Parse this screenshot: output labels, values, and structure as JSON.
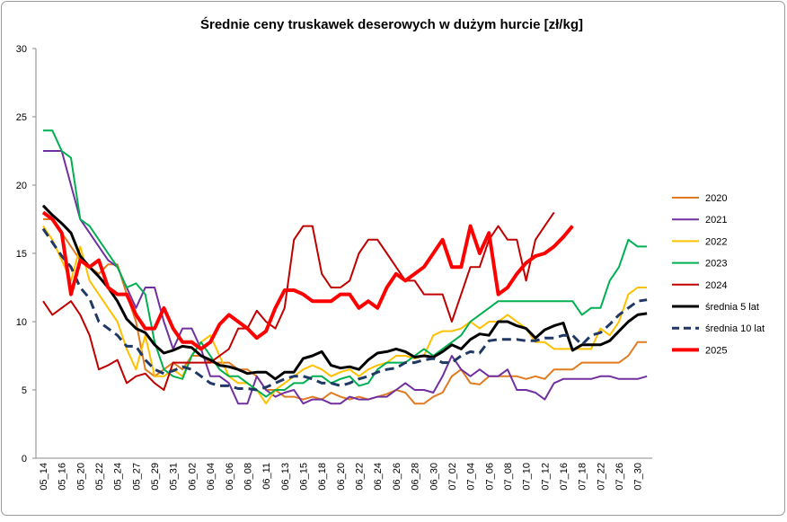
{
  "chart_data": {
    "type": "line",
    "title": "Średnie ceny truskawek deserowych w dużym hurcie [zł/kg]",
    "categories": [
      "05_14",
      null,
      "05_16",
      null,
      "05_20",
      null,
      "05_22",
      null,
      "05_24",
      null,
      "05_27",
      null,
      "05_29",
      null,
      "05_31",
      null,
      "06_02",
      null,
      "06_04",
      null,
      "06_06",
      null,
      "06_08",
      null,
      "06_11",
      null,
      "06_13",
      null,
      "06_15",
      null,
      "06_18",
      null,
      "06_20",
      null,
      "06_22",
      null,
      "06_24",
      null,
      "06_26",
      null,
      "06_28",
      null,
      "06_30",
      null,
      "07_02",
      null,
      "07_04",
      null,
      "07_06",
      null,
      "07_08",
      null,
      "07_10",
      null,
      "07_12",
      null,
      "07_16",
      null,
      "07_18",
      null,
      "07_22",
      null,
      "07_26",
      null,
      "07_30",
      null
    ],
    "ylim": [
      0,
      30
    ],
    "yticks": [
      0,
      5,
      10,
      15,
      20,
      25,
      30
    ],
    "grid": false,
    "legend": "right",
    "series": [
      {
        "name": "2020",
        "color": "#e07b20",
        "line_width": 2,
        "dash": false,
        "values": [
          17.5,
          17.5,
          16.5,
          15.5,
          14.5,
          14,
          13.5,
          14.2,
          14.2,
          12,
          10,
          6.5,
          6,
          6.5,
          7,
          6.5,
          7.5,
          7.5,
          7,
          7,
          7,
          6.5,
          6.5,
          6,
          5,
          5,
          4.5,
          4.5,
          4.3,
          4.5,
          4.3,
          4.8,
          4.5,
          4.3,
          4.5,
          4.3,
          4.5,
          4.7,
          5,
          4.8,
          4,
          4,
          4.5,
          4.8,
          6,
          6.5,
          5.5,
          5.4,
          6,
          6,
          6,
          6,
          5.8,
          6,
          5.8,
          6.5,
          6.5,
          6.5,
          7,
          7,
          7,
          7,
          7,
          7.5,
          8.5,
          8.5
        ]
      },
      {
        "name": "2021",
        "color": "#7030a0",
        "line_width": 2,
        "dash": false,
        "values": [
          22.5,
          22.5,
          22.5,
          20,
          17.5,
          16.5,
          15.5,
          14.5,
          14,
          12.5,
          11,
          12.5,
          12.5,
          10,
          8,
          9.5,
          9.5,
          8,
          6,
          6,
          5.5,
          4,
          4,
          6,
          5,
          4.5,
          4.8,
          5,
          4,
          4.3,
          4.3,
          4,
          4,
          4.5,
          4.3,
          4.3,
          4.5,
          4.5,
          5,
          5.5,
          5,
          5,
          4.8,
          6,
          7.5,
          6.5,
          6,
          6.5,
          6,
          6,
          6.5,
          5,
          5,
          4.8,
          4.3,
          5.5,
          5.8,
          5.8,
          5.8,
          5.8,
          6,
          6,
          5.8,
          5.8,
          5.8,
          6
        ]
      },
      {
        "name": "2022",
        "color": "#ffc000",
        "line_width": 2,
        "dash": false,
        "values": [
          17,
          16,
          14.5,
          13,
          15.5,
          13,
          12,
          11,
          10,
          8,
          6.5,
          9,
          6,
          6,
          6.5,
          6,
          7.5,
          8.5,
          9,
          7.5,
          6,
          5.5,
          5.5,
          5,
          4,
          5,
          5.5,
          6,
          6.5,
          6.8,
          6.5,
          6,
          6.3,
          6.5,
          6,
          6.5,
          6.8,
          7,
          7.5,
          7.5,
          7.3,
          7.5,
          9,
          9.3,
          9.3,
          9.5,
          10,
          9.5,
          10,
          10,
          10.5,
          10,
          9.5,
          8.5,
          8.5,
          8,
          8,
          8,
          8,
          8,
          9.5,
          9,
          10,
          12,
          12.5,
          12.5
        ]
      },
      {
        "name": "2023",
        "color": "#00b050",
        "line_width": 2,
        "dash": false,
        "values": [
          24,
          24,
          22.5,
          22,
          17.5,
          17,
          16,
          15,
          14,
          12.5,
          12.8,
          12,
          8.5,
          6.5,
          6,
          5.8,
          7.5,
          8.5,
          7.5,
          6.5,
          6,
          6,
          5.5,
          5,
          4.5,
          5,
          5,
          5.5,
          5.5,
          6,
          6,
          5.5,
          5.8,
          6,
          5.3,
          5.5,
          6.5,
          7,
          7,
          7,
          7.5,
          8,
          7.5,
          8,
          8.5,
          9,
          10,
          10.5,
          11,
          11.5,
          11.5,
          11.5,
          11.5,
          11.5,
          11.5,
          11.5,
          11.5,
          11.5,
          10.5,
          11,
          11,
          13,
          14,
          16,
          15.5,
          15.5
        ]
      },
      {
        "name": "2024",
        "color": "#c00000",
        "line_width": 2,
        "dash": false,
        "values": [
          11.5,
          10.5,
          11,
          11.5,
          10.5,
          9,
          6.5,
          6.8,
          7.2,
          5.5,
          6,
          6.2,
          5.5,
          5,
          7,
          7,
          7,
          7,
          7,
          7.5,
          8,
          9.5,
          9.5,
          10.8,
          10,
          9.5,
          11,
          16,
          17,
          17,
          13.5,
          12.5,
          12.5,
          13,
          15,
          16,
          16,
          15,
          14,
          13,
          13,
          12,
          12,
          12,
          10,
          12,
          14,
          14,
          16,
          17,
          16,
          16,
          13,
          16,
          17,
          18,
          null,
          null,
          null,
          null,
          null,
          null,
          null,
          null,
          null,
          null
        ]
      },
      {
        "name": "średnia 5 lat",
        "color": "#000000",
        "line_width": 3,
        "dash": false,
        "values": [
          18.5,
          17.8,
          17.2,
          16.5,
          14.8,
          14,
          13.3,
          12.5,
          11.5,
          10.2,
          9.5,
          9.2,
          8.3,
          7.7,
          7.9,
          8.2,
          8.1,
          7.5,
          7.2,
          6.8,
          6.7,
          6.5,
          6.2,
          6.3,
          6.3,
          5.8,
          6.3,
          6.3,
          7.3,
          7.5,
          7.8,
          6.8,
          6.6,
          6.7,
          6.5,
          7.2,
          7.7,
          7.8,
          8,
          7.8,
          7.4,
          7.5,
          7.4,
          7.8,
          8.3,
          8,
          8.7,
          9.1,
          9,
          10,
          10,
          9.7,
          9.5,
          8.8,
          9.4,
          9.7,
          9.9,
          7.9,
          8.3,
          8.3,
          8.3,
          8.6,
          9.3,
          10,
          10.5,
          10.6
        ]
      },
      {
        "name": "średnia 10 lat",
        "color": "#1f3864",
        "line_width": 3,
        "dash": true,
        "values": [
          16.8,
          15.8,
          14.8,
          14,
          12.5,
          11.7,
          10,
          9.5,
          9,
          8.2,
          8.2,
          7.2,
          6.5,
          6.2,
          6.4,
          6.7,
          6.5,
          6,
          5.5,
          5.3,
          5.3,
          5.1,
          5.1,
          5,
          5.2,
          5.5,
          5.8,
          6,
          6,
          5.8,
          5.5,
          5.5,
          5.3,
          5.5,
          5.8,
          6,
          6.3,
          6.5,
          6.6,
          7,
          7,
          7.2,
          7.3,
          7,
          7,
          7.5,
          7.8,
          7.7,
          8.6,
          8.7,
          8.7,
          8.7,
          8.6,
          8.6,
          8.8,
          8.8,
          9,
          9,
          8.3,
          9,
          9.2,
          9.8,
          10.5,
          11,
          11.5,
          11.6
        ]
      },
      {
        "name": "2025",
        "color": "#ff0000",
        "line_width": 4,
        "dash": false,
        "values": [
          18,
          17.5,
          16.5,
          12,
          14.5,
          14,
          14.5,
          12.5,
          12,
          12,
          10.5,
          9.5,
          9.5,
          11,
          9.5,
          8.5,
          8.5,
          8,
          8.5,
          9.8,
          10.5,
          10,
          9.5,
          8.8,
          9.3,
          11,
          12.3,
          12.3,
          12,
          11.5,
          11.5,
          11.5,
          12,
          12,
          11,
          11.5,
          11,
          12.5,
          13.5,
          13,
          13.5,
          14,
          15,
          16,
          14,
          14,
          17,
          15,
          16.5,
          12,
          12.5,
          13.5,
          14.3,
          14.8,
          15,
          15.5,
          16.2,
          17,
          null,
          null,
          null,
          null,
          null,
          null,
          null,
          null
        ]
      }
    ]
  }
}
